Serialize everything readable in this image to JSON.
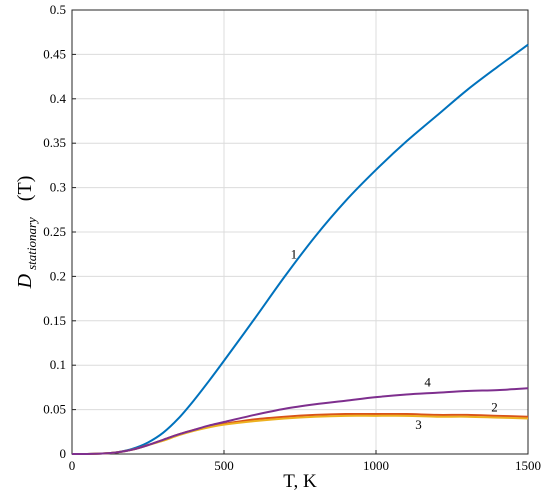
{
  "chart_data": {
    "type": "line",
    "xlabel": "T, K",
    "ylabel": {
      "main": "D",
      "subscript": "stationary",
      "unit": "(T)"
    },
    "xlim": [
      0,
      1500
    ],
    "ylim": [
      0,
      0.5
    ],
    "grid": true,
    "x_ticks": [
      "0",
      "500",
      "1000",
      "1500"
    ],
    "y_ticks": [
      "0",
      "0.05",
      "0.1",
      "0.15",
      "0.2",
      "0.25",
      "0.3",
      "0.35",
      "0.4",
      "0.45",
      "0.5"
    ],
    "series": [
      {
        "label": "1",
        "color": "#0072BD",
        "x": [
          0,
          50,
          100,
          150,
          200,
          250,
          300,
          350,
          400,
          450,
          500,
          600,
          700,
          800,
          900,
          1000,
          1100,
          1200,
          1300,
          1400,
          1500
        ],
        "y": [
          0,
          0,
          0.0005,
          0.002,
          0.006,
          0.013,
          0.024,
          0.04,
          0.06,
          0.082,
          0.105,
          0.152,
          0.2,
          0.245,
          0.285,
          0.32,
          0.352,
          0.381,
          0.41,
          0.436,
          0.461
        ],
        "label_at": [
          730,
          0.22
        ]
      },
      {
        "label": "2",
        "color": "#D95319",
        "x": [
          0,
          50,
          100,
          150,
          200,
          250,
          300,
          350,
          400,
          450,
          500,
          600,
          700,
          800,
          900,
          1000,
          1100,
          1200,
          1300,
          1400,
          1500
        ],
        "y": [
          0,
          0,
          0.0005,
          0.002,
          0.005,
          0.01,
          0.016,
          0.022,
          0.027,
          0.031,
          0.034,
          0.039,
          0.042,
          0.044,
          0.045,
          0.045,
          0.045,
          0.044,
          0.044,
          0.043,
          0.042
        ],
        "label_at": [
          1390,
          0.048
        ]
      },
      {
        "label": "3",
        "color": "#EDB120",
        "x": [
          0,
          50,
          100,
          150,
          200,
          250,
          300,
          350,
          400,
          450,
          500,
          600,
          700,
          800,
          900,
          1000,
          1100,
          1200,
          1300,
          1400,
          1500
        ],
        "y": [
          0,
          0,
          0.0005,
          0.002,
          0.005,
          0.01,
          0.015,
          0.021,
          0.026,
          0.03,
          0.033,
          0.037,
          0.04,
          0.042,
          0.043,
          0.043,
          0.043,
          0.042,
          0.042,
          0.041,
          0.04
        ],
        "label_at": [
          1140,
          0.028
        ]
      },
      {
        "label": "4",
        "color": "#7E2F8E",
        "x": [
          0,
          50,
          100,
          150,
          200,
          250,
          300,
          350,
          400,
          450,
          500,
          600,
          700,
          800,
          900,
          1000,
          1100,
          1200,
          1300,
          1400,
          1500
        ],
        "y": [
          0,
          0,
          0.0005,
          0.002,
          0.005,
          0.01,
          0.016,
          0.022,
          0.027,
          0.032,
          0.036,
          0.044,
          0.051,
          0.056,
          0.06,
          0.064,
          0.067,
          0.069,
          0.071,
          0.072,
          0.074
        ],
        "label_at": [
          1170,
          0.076
        ]
      }
    ]
  }
}
